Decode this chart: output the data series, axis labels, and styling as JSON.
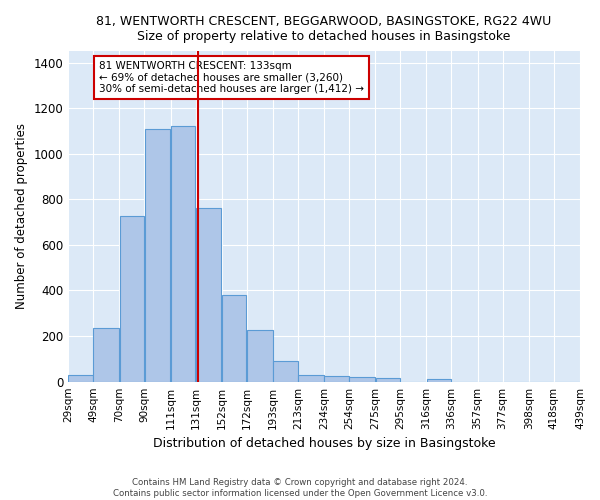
{
  "title_line1": "81, WENTWORTH CRESCENT, BEGGARWOOD, BASINGSTOKE, RG22 4WU",
  "title_line2": "Size of property relative to detached houses in Basingstoke",
  "xlabel": "Distribution of detached houses by size in Basingstoke",
  "ylabel": "Number of detached properties",
  "bar_heights": [
    30,
    235,
    725,
    1110,
    1120,
    760,
    380,
    225,
    90,
    30,
    25,
    20,
    15,
    0,
    10,
    0,
    0,
    0,
    0,
    0
  ],
  "bin_edges": [
    29,
    49,
    70,
    90,
    111,
    131,
    152,
    172,
    193,
    213,
    234,
    254,
    275,
    295,
    316,
    336,
    357,
    377,
    398,
    418,
    439
  ],
  "bar_labels": [
    "29sqm",
    "49sqm",
    "70sqm",
    "90sqm",
    "111sqm",
    "131sqm",
    "152sqm",
    "172sqm",
    "193sqm",
    "213sqm",
    "234sqm",
    "254sqm",
    "275sqm",
    "295sqm",
    "316sqm",
    "336sqm",
    "357sqm",
    "377sqm",
    "398sqm",
    "418sqm",
    "439sqm"
  ],
  "bar_color": "#aec6e8",
  "bar_edge_color": "#5b9bd5",
  "vline_x": 133,
  "vline_color": "#cc0000",
  "annotation_box_text": "81 WENTWORTH CRESCENT: 133sqm\n← 69% of detached houses are smaller (3,260)\n30% of semi-detached houses are larger (1,412) →",
  "ylim": [
    0,
    1450
  ],
  "yticks": [
    0,
    200,
    400,
    600,
    800,
    1000,
    1200,
    1400
  ],
  "background_color": "#ffffff",
  "plot_bg_color": "#dce9f7",
  "grid_color": "#ffffff",
  "footer_line1": "Contains HM Land Registry data © Crown copyright and database right 2024.",
  "footer_line2": "Contains public sector information licensed under the Open Government Licence v3.0."
}
